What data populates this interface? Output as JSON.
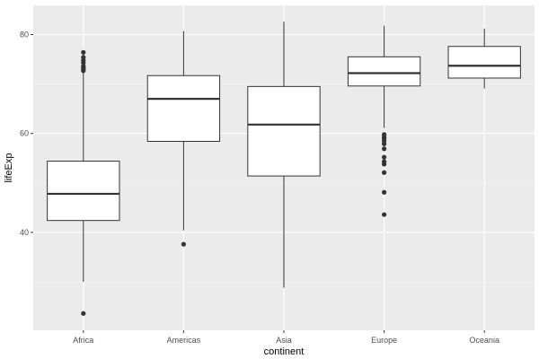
{
  "chart_data": {
    "type": "box",
    "xlabel": "continent",
    "ylabel": "lifeExp",
    "categories": [
      "Africa",
      "Americas",
      "Asia",
      "Europe",
      "Oceania"
    ],
    "yticks": [
      40,
      60,
      80
    ],
    "ylim": [
      20.2,
      85.9
    ],
    "grid": true,
    "colors": {
      "panel_background": "#EBEBEB",
      "grid_major": "#FFFFFF",
      "grid_minor": "#F5F5F5",
      "box_fill": "#FFFFFF",
      "box_stroke": "#333333",
      "outlier": "#333333"
    },
    "boxes": [
      {
        "category": "Africa",
        "min": 30.0,
        "q1": 42.4,
        "median": 47.8,
        "q3": 54.4,
        "max": 76.2,
        "outliers": [
          23.6,
          72.7,
          73.0,
          73.3,
          73.6,
          74.3,
          74.8,
          75.4,
          76.4
        ]
      },
      {
        "category": "Americas",
        "min": 40.4,
        "q1": 58.4,
        "median": 67.0,
        "q3": 71.7,
        "max": 80.7,
        "outliers": [
          37.6
        ]
      },
      {
        "category": "Asia",
        "min": 28.8,
        "q1": 51.4,
        "median": 61.8,
        "q3": 69.5,
        "max": 82.6,
        "outliers": []
      },
      {
        "category": "Europe",
        "min": 61.1,
        "q1": 69.6,
        "median": 72.2,
        "q3": 75.5,
        "max": 81.8,
        "outliers": [
          43.6,
          48.1,
          52.1,
          53.8,
          54.3,
          55.2,
          56.9,
          57.9,
          58.5,
          59.0,
          59.3,
          59.8
        ]
      },
      {
        "category": "Oceania",
        "min": 69.1,
        "q1": 71.2,
        "median": 73.7,
        "q3": 77.6,
        "max": 81.2,
        "outliers": []
      }
    ]
  }
}
